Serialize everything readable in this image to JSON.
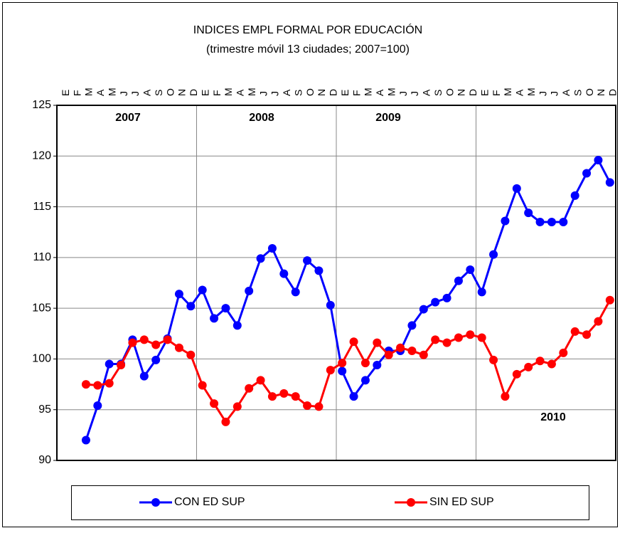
{
  "chart_data": {
    "type": "line",
    "title": "INDICES EMPL FORMAL POR EDUCACIÓN",
    "subtitle": "(trimestre móvil 13 ciudades; 2007=100)",
    "categories": [
      "E",
      "F",
      "M",
      "A",
      "M",
      "J",
      "J",
      "A",
      "S",
      "O",
      "N",
      "D",
      "E",
      "F",
      "M",
      "A",
      "M",
      "J",
      "J",
      "A",
      "S",
      "O",
      "N",
      "D",
      "E",
      "F",
      "M",
      "A",
      "M",
      "J",
      "J",
      "A",
      "S",
      "O",
      "N",
      "D",
      "E",
      "F",
      "M",
      "A",
      "M",
      "J",
      "J",
      "A",
      "S",
      "O",
      "N",
      "D"
    ],
    "series": [
      {
        "name": "CON ED SUP",
        "color": "#0000ff",
        "values": [
          null,
          null,
          92.0,
          95.4,
          99.5,
          99.5,
          101.9,
          98.3,
          99.9,
          102.0,
          106.4,
          105.2,
          106.8,
          104.0,
          105.0,
          103.3,
          106.7,
          109.9,
          110.9,
          108.4,
          106.6,
          109.7,
          108.7,
          105.3,
          98.8,
          96.3,
          97.9,
          99.4,
          100.8,
          100.8,
          103.3,
          104.9,
          105.6,
          106.0,
          107.7,
          108.8,
          106.6,
          110.3,
          113.6,
          116.8,
          114.4,
          113.5,
          113.5,
          113.5,
          116.1,
          118.3,
          119.6,
          117.4
        ]
      },
      {
        "name": "SIN ED SUP",
        "color": "#ff0000",
        "values": [
          null,
          null,
          97.5,
          97.4,
          97.6,
          99.4,
          101.6,
          101.9,
          101.4,
          101.9,
          101.1,
          100.4,
          97.4,
          95.6,
          93.8,
          95.3,
          97.1,
          97.9,
          96.3,
          96.6,
          96.3,
          95.4,
          95.3,
          98.9,
          99.6,
          101.7,
          99.6,
          101.6,
          100.4,
          101.1,
          100.8,
          100.4,
          101.9,
          101.6,
          102.1,
          102.4,
          102.1,
          99.9,
          96.3,
          98.5,
          99.2,
          99.8,
          99.5,
          100.6,
          102.7,
          102.4,
          103.7,
          105.8
        ]
      }
    ],
    "annotations": [
      "2007",
      "2008",
      "2009",
      "2010"
    ],
    "ylim": [
      90,
      125
    ],
    "yticks": [
      90,
      95,
      100,
      105,
      110,
      115,
      120,
      125
    ],
    "grid": true,
    "legend": "bottom"
  }
}
